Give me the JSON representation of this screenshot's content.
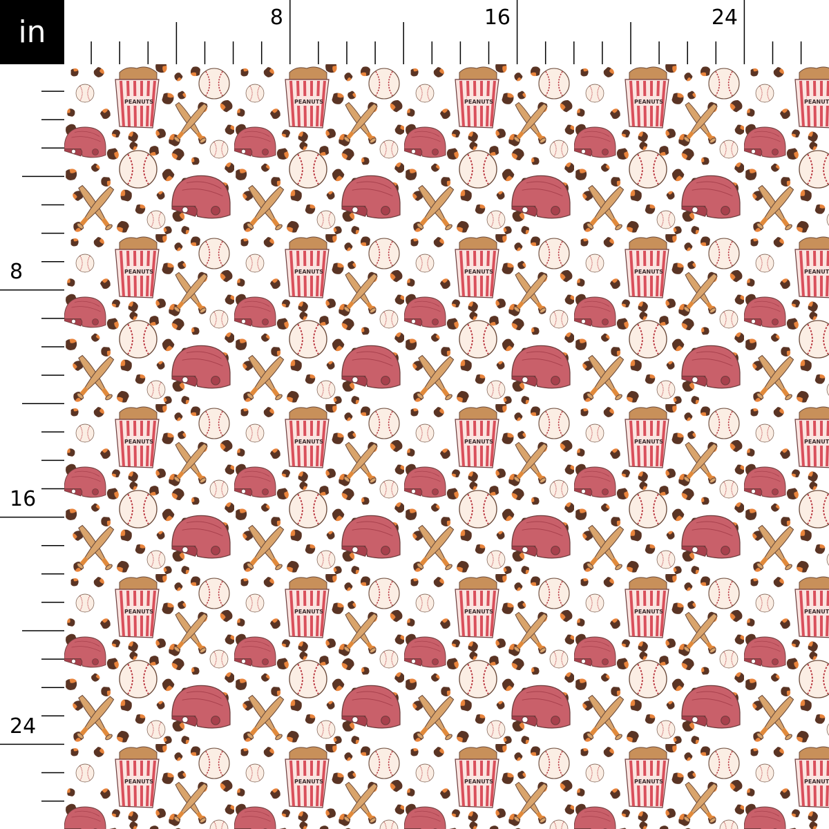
{
  "unit_label": "in",
  "ruler": {
    "top_labels": [
      "8",
      "16",
      "24"
    ],
    "left_labels": [
      "8",
      "16",
      "24"
    ]
  },
  "fabric": {
    "motifs": [
      "popcorn-peanuts-box",
      "batting-helmet",
      "baseball",
      "crossed-bats",
      "leopard-spots"
    ],
    "box_text": "PEANUTS",
    "colors": {
      "background": "#ffffff",
      "helmet": "#c9606a",
      "box_stripe": "#d9505c",
      "bat": "#d9a46c",
      "spot_dark": "#5a3424",
      "spot_orange": "#e8843c",
      "ball": "#fbeee4",
      "stitch": "#b8323c"
    }
  }
}
